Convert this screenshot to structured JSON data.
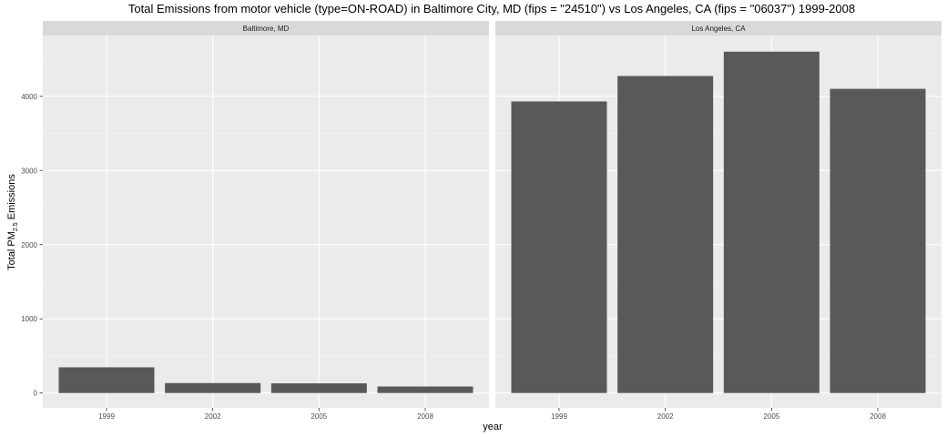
{
  "chart_data": {
    "type": "bar",
    "title": "Total Emissions from motor vehicle (type=ON-ROAD) in Baltimore City, MD (fips = \"24510\") vs Los Angeles, CA (fips = \"06037\")  1999-2008",
    "xlabel": "year",
    "ylabel": {
      "prefix": "Total PM",
      "subscript": "2.5",
      "suffix": " Emissions"
    },
    "categories": [
      "1999",
      "2002",
      "2005",
      "2008"
    ],
    "ylim": [
      -200,
      4820
    ],
    "yticks": [
      0,
      1000,
      2000,
      3000,
      4000
    ],
    "ytick_labels": [
      "0",
      "1000",
      "2000",
      "3000",
      "4000"
    ],
    "grid": true,
    "bar_color": "#595959",
    "panel_color": "#ebebeb",
    "strip_color": "#d9d9d9",
    "facets": [
      {
        "name": "Baltimore, MD",
        "values": [
          346.8,
          134.3,
          130.4,
          88.3
        ]
      },
      {
        "name": "Los Angeles, CA",
        "values": [
          3931,
          4274,
          4602,
          4101
        ]
      }
    ]
  }
}
